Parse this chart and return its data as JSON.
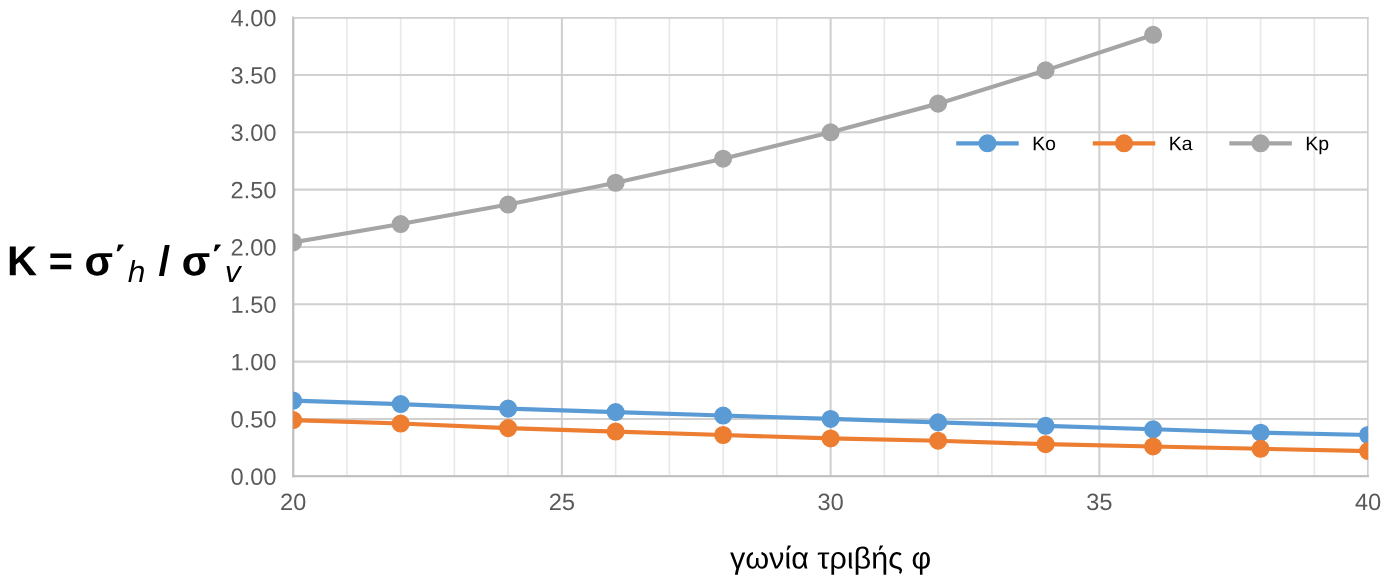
{
  "chart_data": {
    "type": "line",
    "xlabel": "γωνία τριβής φ",
    "ylabel": "K = σ΄$_{h}$ / σ΄$_{v}$",
    "x": [
      20,
      22,
      24,
      26,
      28,
      30,
      32,
      34,
      36,
      38,
      40
    ],
    "series": [
      {
        "name": "Ko",
        "color": "#5b9bd5",
        "values": [
          0.66,
          0.63,
          0.59,
          0.56,
          0.53,
          0.5,
          0.47,
          0.44,
          0.41,
          0.38,
          0.36
        ]
      },
      {
        "name": "Ka",
        "color": "#ed7d31",
        "values": [
          0.49,
          0.46,
          0.42,
          0.39,
          0.36,
          0.33,
          0.31,
          0.28,
          0.26,
          0.24,
          0.22
        ]
      },
      {
        "name": "Kp",
        "color": "#a5a5a5",
        "values": [
          2.04,
          2.2,
          2.37,
          2.56,
          2.77,
          3.0,
          3.25,
          3.54,
          3.85,
          null,
          null
        ]
      }
    ],
    "xlim": [
      20,
      40
    ],
    "xticks": [
      20,
      25,
      30,
      35,
      40
    ],
    "ylim": [
      0,
      4
    ],
    "yticks": [
      {
        "value": 0,
        "label": "0.00"
      },
      {
        "value": 0.5,
        "label": "0.50"
      },
      {
        "value": 1,
        "label": "1.00"
      },
      {
        "value": 1.5,
        "label": "1.50"
      },
      {
        "value": 2,
        "label": "2.00"
      },
      {
        "value": 2.5,
        "label": "2.50"
      },
      {
        "value": 3,
        "label": "3.00"
      },
      {
        "value": 3.5,
        "label": "3.50"
      },
      {
        "value": 4,
        "label": "4.00"
      }
    ],
    "grid": true,
    "legend": "right",
    "marker": "circle",
    "line_style": "solid"
  }
}
